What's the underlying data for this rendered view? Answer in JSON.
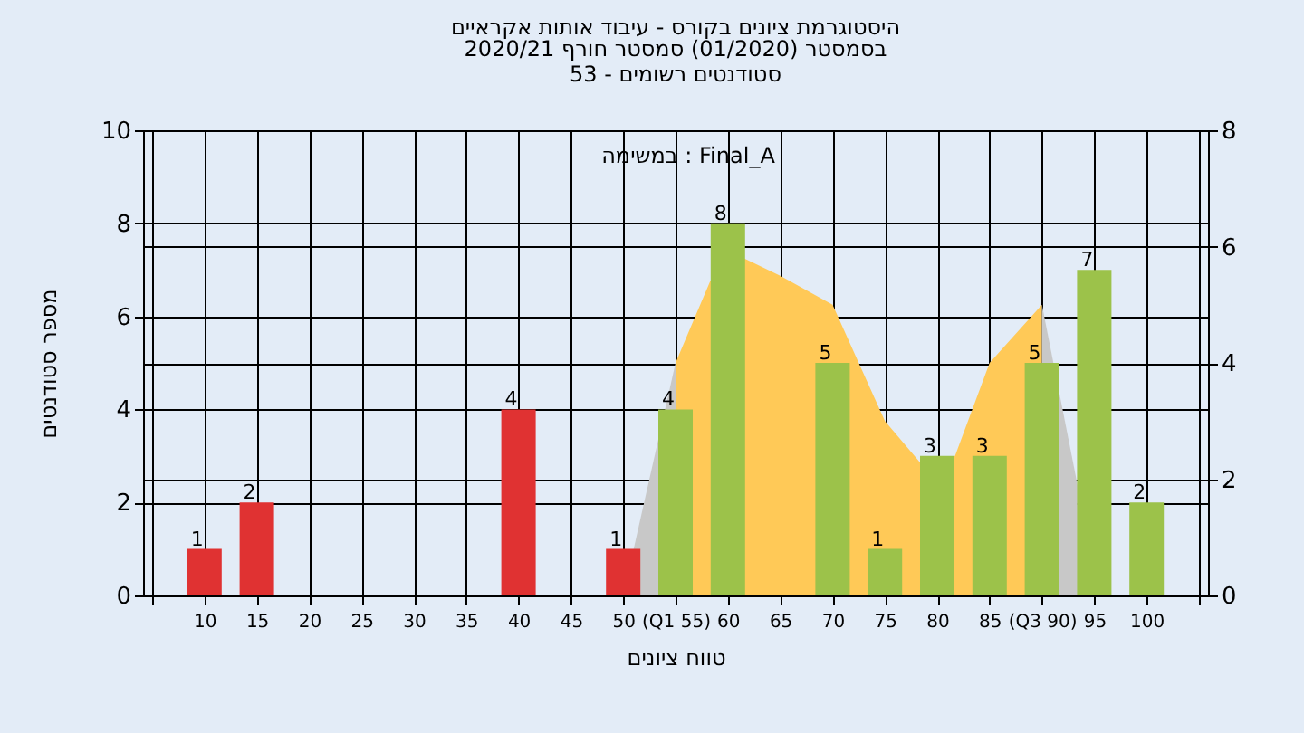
{
  "chart_data": {
    "type": "bar",
    "title": "היסטוגרמת ציונים בקורס - עיבוד אותות אקראיים",
    "subtitle": "בסמסטר  (01/2020)  סמסטר חורף  2020/21\nסטודנטים רשומים - 53",
    "xlabel": "טווח ציונים",
    "ylabel": "מספר סטודנטים",
    "annotations": [
      "במשימה : Final_A"
    ],
    "xlim": [
      5,
      105
    ],
    "xticks": [
      {
        "value": 5,
        "label": null
      },
      10,
      15,
      20,
      25,
      30,
      35,
      40,
      45,
      50,
      {
        "value": 55,
        "label": "(Q1 55)"
      },
      60,
      65,
      70,
      75,
      80,
      85,
      {
        "value": 90,
        "label": "(Q3 90)"
      },
      95,
      100,
      {
        "value": 105,
        "label": null
      }
    ],
    "ylim": [
      0,
      10
    ],
    "yticks": [
      0,
      2,
      4,
      6,
      8,
      10
    ],
    "y2lim": [
      0,
      8
    ],
    "y2ticks": [
      0,
      2,
      4,
      6,
      8
    ],
    "grid": true,
    "series": [
      {
        "type": "bar",
        "x": [
          10,
          15,
          40,
          50,
          55,
          60,
          70,
          75,
          80,
          85,
          90,
          95,
          100
        ],
        "values": [
          1,
          2,
          4,
          1,
          4,
          8,
          5,
          1,
          3,
          3,
          5,
          7,
          2
        ],
        "value_labels": [
          "1",
          "2",
          "4",
          "1",
          "4",
          "8",
          "5",
          "1",
          "3",
          "3",
          "5",
          "7",
          "2"
        ],
        "colors": [
          "#e03232",
          "#e03232",
          "#e03232",
          "#e03232",
          "#9cc24a",
          "#9cc24a",
          "#9cc24a",
          "#9cc24a",
          "#9cc24a",
          "#9cc24a",
          "#9cc24a",
          "#9cc24a",
          "#9cc24a"
        ]
      },
      {
        "type": "area",
        "axis": "y2",
        "color": "#c8c8c8",
        "x": [
          50,
          55
        ],
        "values": [
          0,
          4.0
        ]
      },
      {
        "type": "area",
        "axis": "y2",
        "color": "#ffc957",
        "x": [
          55,
          58.3,
          61.5,
          65,
          70,
          75,
          78.3,
          81.7,
          85,
          90
        ],
        "values": [
          4.0,
          5.4,
          5.8,
          5.5,
          5.0,
          3.0,
          2.3,
          2.4,
          4.0,
          5.0
        ]
      },
      {
        "type": "area",
        "axis": "y2",
        "color": "#c8c8c8",
        "x": [
          90,
          93.4
        ],
        "values": [
          5.0,
          1.9
        ]
      }
    ]
  }
}
